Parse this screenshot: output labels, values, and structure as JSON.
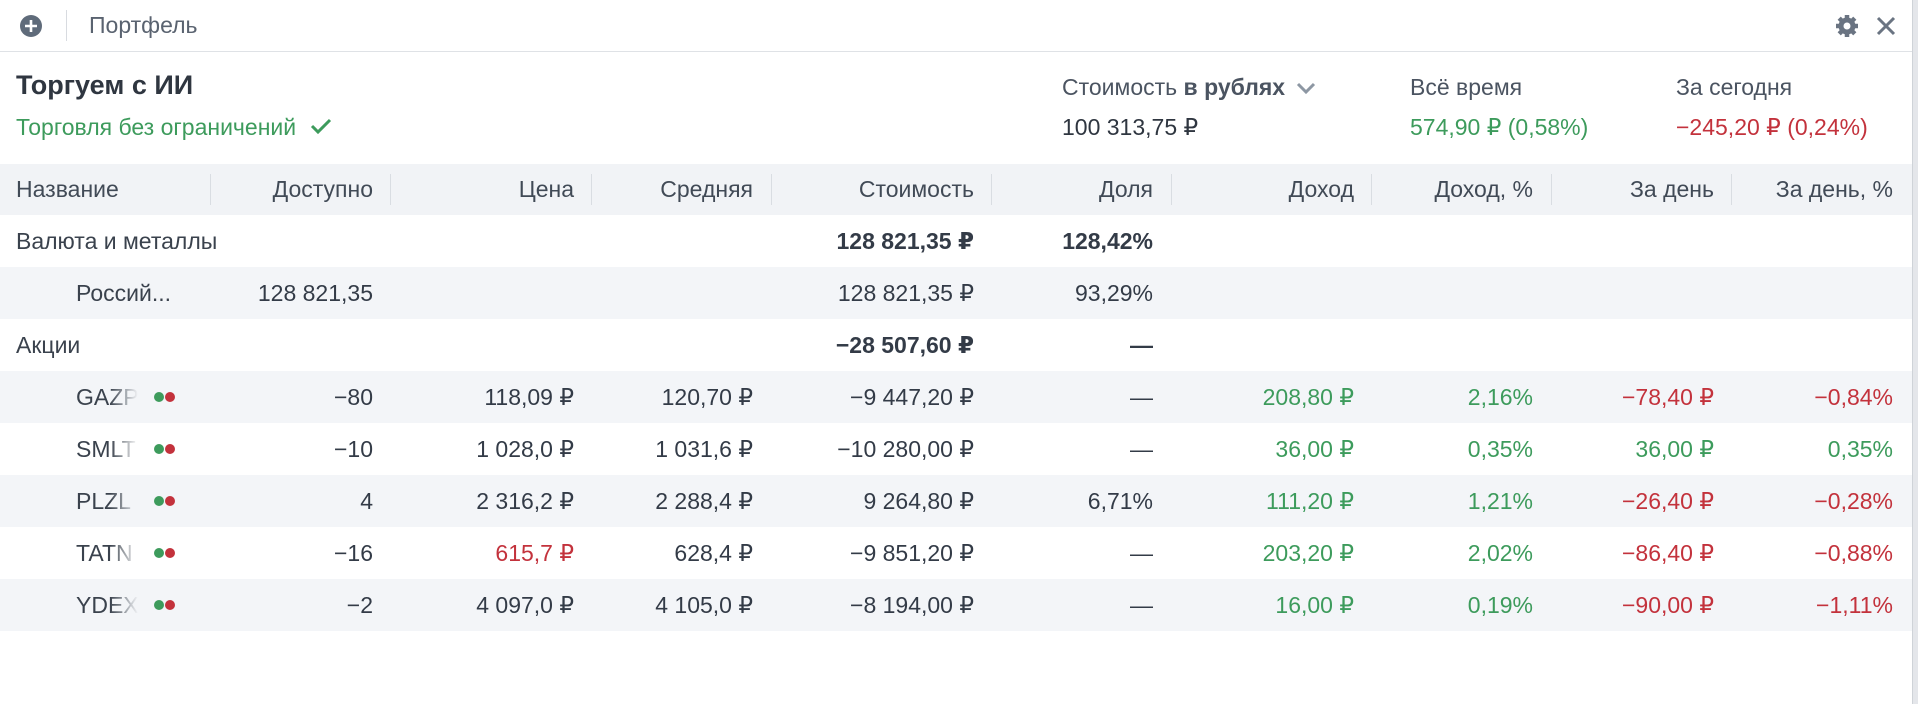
{
  "topbar": {
    "title": "Портфель"
  },
  "header": {
    "name": "Торгуем с ИИ",
    "status": "Торговля без ограничений",
    "value_label": "Стоимость",
    "value_currency": "в рублях",
    "value": "100 313,75 ₽",
    "alltime_label": "Всё время",
    "alltime": "574,90 ₽ (0,58%)",
    "today_label": "За сегодня",
    "today": "−245,20 ₽ (0,24%)"
  },
  "colors": {
    "positive": "#3d9b5c",
    "negative": "#c3323c"
  },
  "table": {
    "columns": [
      "Название",
      "Доступно",
      "Цена",
      "Средняя",
      "Стоимость",
      "Доля",
      "Доход",
      "Доход, %",
      "За день",
      "За день, %"
    ],
    "rows": [
      {
        "kind": "section",
        "cells": [
          "Валюта и металлы",
          null,
          null,
          null,
          "128 821,35 ₽",
          "128,42%",
          null,
          null,
          null,
          null
        ]
      },
      {
        "kind": "asset",
        "icon": "rub",
        "cells": [
          "Россий...",
          "128 821,35",
          null,
          null,
          "128 821,35 ₽",
          "93,29%",
          null,
          null,
          null,
          null
        ]
      },
      {
        "kind": "section",
        "cells": [
          "Акции",
          null,
          null,
          null,
          "−28 507,60 ₽",
          "—",
          null,
          null,
          null,
          null
        ]
      },
      {
        "kind": "asset",
        "icon": "gazp",
        "cells": [
          "GAZP",
          "−80",
          "118,09 ₽",
          "120,70 ₽",
          "−9 447,20 ₽",
          "—",
          "208,80 ₽",
          "2,16%",
          "−78,40 ₽",
          "−0,84%"
        ]
      },
      {
        "kind": "asset",
        "icon": "smlt",
        "cells": [
          "SMLT",
          "−10",
          "1 028,0 ₽",
          "1 031,6 ₽",
          "−10 280,00 ₽",
          "—",
          "36,00 ₽",
          "0,35%",
          "36,00 ₽",
          "0,35%"
        ]
      },
      {
        "kind": "asset",
        "icon": "plzl",
        "cells": [
          "PLZL",
          "4",
          "2 316,2 ₽",
          "2 288,4 ₽",
          "9 264,80 ₽",
          "6,71%",
          "111,20 ₽",
          "1,21%",
          "−26,40 ₽",
          "−0,28%"
        ]
      },
      {
        "kind": "asset",
        "icon": "tatn",
        "price_tone": "negative",
        "cells": [
          "TATN",
          "−16",
          "615,7 ₽",
          "628,4 ₽",
          "−9 851,20 ₽",
          "—",
          "203,20 ₽",
          "2,02%",
          "−86,40 ₽",
          "−0,88%"
        ]
      },
      {
        "kind": "asset",
        "icon": "ydex",
        "cells": [
          "YDEX",
          "−2",
          "4 097,0 ₽",
          "4 105,0 ₽",
          "−8 194,00 ₽",
          "—",
          "16,00 ₽",
          "0,19%",
          "−90,00 ₽",
          "−1,11%"
        ]
      }
    ]
  }
}
